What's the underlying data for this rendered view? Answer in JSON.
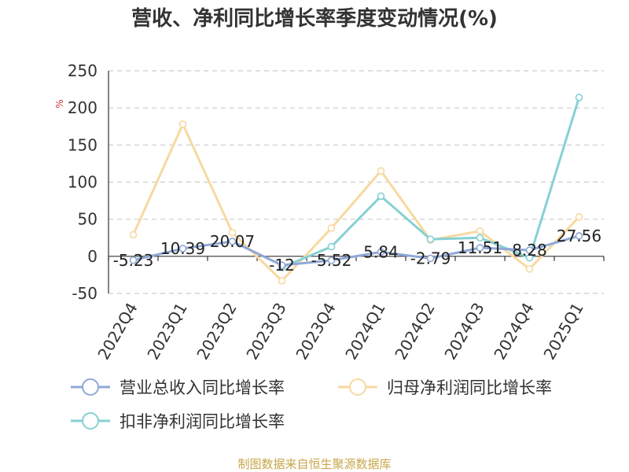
{
  "title": "营收、净利同比增长率季度变动情况(%)",
  "source": "制图数据来自恒生聚源数据库",
  "chart_data": {
    "type": "line",
    "title": "营收、净利同比增长率季度变动情况(%)",
    "unit_label": "%",
    "categories": [
      "2022Q4",
      "2023Q1",
      "2023Q2",
      "2023Q3",
      "2023Q4",
      "2024Q1",
      "2024Q2",
      "2024Q3",
      "2024Q4",
      "2025Q1"
    ],
    "ylim": [
      -50,
      250
    ],
    "yticks": [
      -50,
      0,
      50,
      100,
      150,
      200,
      250
    ],
    "grid": true,
    "legend_position": "bottom",
    "series": [
      {
        "name": "营业总收入同比增长率",
        "color": "#8fa8d8",
        "values": [
          -5.23,
          10.39,
          20.07,
          -12,
          -5.52,
          5.84,
          -2.79,
          11.51,
          8.28,
          27.56
        ],
        "labels": [
          "-5.23",
          "10.39",
          "20.07",
          "-12",
          "-5.52",
          "5.84",
          "-2.79",
          "11.51",
          "8.28",
          "27.56"
        ]
      },
      {
        "name": "归母净利润同比增长率",
        "color": "#f7d9a0",
        "values": [
          29,
          178,
          32,
          -33,
          38,
          115,
          22,
          34,
          -17,
          53
        ]
      },
      {
        "name": "扣非净利润同比增长率",
        "color": "#86d0d4",
        "values": [
          null,
          null,
          null,
          -15,
          13,
          81,
          23,
          25,
          -2,
          214
        ]
      }
    ]
  }
}
